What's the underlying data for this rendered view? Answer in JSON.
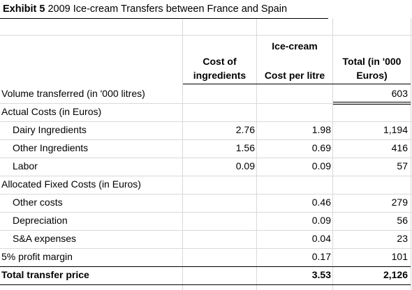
{
  "exhibit": {
    "label": "Exhibit 5",
    "title": "2009 Ice-cream Transfers between France and Spain"
  },
  "headers": {
    "group": "Ice-cream",
    "cost_of_ingredients_line1": "Cost of",
    "cost_of_ingredients_line2": "ingredients",
    "cost_per_litre": "Cost per litre",
    "total_line1": "Total (in '000",
    "total_line2": "Euros)"
  },
  "rows": [
    {
      "label": "Volume transferred (in '000 litres)",
      "indent": false,
      "bold": false,
      "ingredients": "",
      "per_litre": "",
      "total": "603"
    },
    {
      "label": "Actual Costs (in Euros)",
      "indent": false,
      "bold": false,
      "ingredients": "",
      "per_litre": "",
      "total": ""
    },
    {
      "label": "Dairy Ingredients",
      "indent": true,
      "bold": false,
      "ingredients": "2.76",
      "per_litre": "1.98",
      "total": "1,194"
    },
    {
      "label": "Other Ingredients",
      "indent": true,
      "bold": false,
      "ingredients": "1.56",
      "per_litre": "0.69",
      "total": "416"
    },
    {
      "label": "Labor",
      "indent": true,
      "bold": false,
      "ingredients": "0.09",
      "per_litre": "0.09",
      "total": "57"
    },
    {
      "label": "Allocated Fixed Costs (in Euros)",
      "indent": false,
      "bold": false,
      "ingredients": "",
      "per_litre": "",
      "total": ""
    },
    {
      "label": "Other costs",
      "indent": true,
      "bold": false,
      "ingredients": "",
      "per_litre": "0.46",
      "total": "279"
    },
    {
      "label": "Depreciation",
      "indent": true,
      "bold": false,
      "ingredients": "",
      "per_litre": "0.09",
      "total": "56"
    },
    {
      "label": "S&A expenses",
      "indent": true,
      "bold": false,
      "ingredients": "",
      "per_litre": "0.04",
      "total": "23"
    },
    {
      "label": "5% profit margin",
      "indent": false,
      "bold": false,
      "ingredients": "",
      "per_litre": "0.17",
      "total": "101"
    },
    {
      "label": "Total transfer price",
      "indent": false,
      "bold": true,
      "ingredients": "",
      "per_litre": "3.53",
      "total": "2,126"
    }
  ]
}
